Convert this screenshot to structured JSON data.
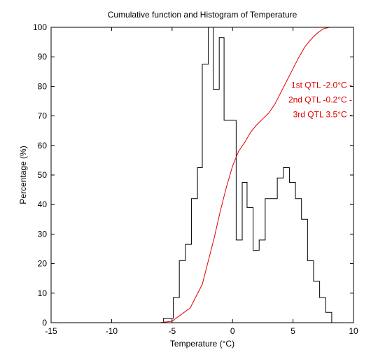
{
  "chart_data": {
    "type": "line",
    "title": "Cumulative function and Histogram of Temperature",
    "xlabel": "Temperature (°C)",
    "ylabel": "Percentage (%)",
    "xlim": [
      -15,
      10
    ],
    "ylim": [
      0,
      100
    ],
    "xticks": [
      -15,
      -10,
      -5,
      0,
      5,
      10
    ],
    "yticks": [
      0,
      10,
      20,
      30,
      40,
      50,
      60,
      70,
      80,
      90,
      100
    ],
    "grid": false,
    "colors": {
      "histogram": "#000000",
      "cumulative": "#e00000",
      "axes": "#000000",
      "background": "#ffffff"
    },
    "series": [
      {
        "kind": "histogram-stairs",
        "points": [
          [
            -15,
            0
          ],
          [
            -5.7,
            0
          ],
          [
            -5.7,
            1.5
          ],
          [
            -4.9,
            1.5
          ],
          [
            -4.9,
            8.5
          ],
          [
            -4.4,
            8.5
          ],
          [
            -4.4,
            21
          ],
          [
            -3.9,
            21
          ],
          [
            -3.9,
            26.5
          ],
          [
            -3.4,
            26.5
          ],
          [
            -3.4,
            42
          ],
          [
            -2.9,
            42
          ],
          [
            -2.9,
            52.5
          ],
          [
            -2.5,
            52.5
          ],
          [
            -2.5,
            87.5
          ],
          [
            -2.0,
            87.5
          ],
          [
            -2.0,
            100
          ],
          [
            -1.6,
            100
          ],
          [
            -1.6,
            79
          ],
          [
            -1.1,
            79
          ],
          [
            -1.1,
            96.5
          ],
          [
            -0.7,
            96.5
          ],
          [
            -0.7,
            68.5
          ],
          [
            0.3,
            68.5
          ],
          [
            0.3,
            28
          ],
          [
            0.8,
            28
          ],
          [
            0.8,
            47.5
          ],
          [
            1.2,
            47.5
          ],
          [
            1.2,
            39
          ],
          [
            1.7,
            39
          ],
          [
            1.7,
            24.5
          ],
          [
            2.2,
            24.5
          ],
          [
            2.2,
            28
          ],
          [
            2.7,
            28
          ],
          [
            2.7,
            42
          ],
          [
            3.7,
            42
          ],
          [
            3.7,
            49
          ],
          [
            4.2,
            49
          ],
          [
            4.2,
            52.5
          ],
          [
            4.7,
            52.5
          ],
          [
            4.7,
            47.5
          ],
          [
            5.2,
            47.5
          ],
          [
            5.2,
            42
          ],
          [
            5.7,
            42
          ],
          [
            5.7,
            35
          ],
          [
            6.2,
            35
          ],
          [
            6.2,
            21
          ],
          [
            6.7,
            21
          ],
          [
            6.7,
            14
          ],
          [
            7.2,
            14
          ],
          [
            7.2,
            8.5
          ],
          [
            7.7,
            8.5
          ],
          [
            7.7,
            3.5
          ],
          [
            8.2,
            3.5
          ],
          [
            8.2,
            0
          ],
          [
            10,
            0
          ]
        ]
      },
      {
        "kind": "cumulative",
        "points": [
          [
            -15,
            0
          ],
          [
            -6,
            0
          ],
          [
            -5,
            0.5
          ],
          [
            -4.5,
            2
          ],
          [
            -3.5,
            5
          ],
          [
            -2.5,
            13
          ],
          [
            -2,
            21
          ],
          [
            -1.5,
            29
          ],
          [
            -1,
            38
          ],
          [
            -0.5,
            46
          ],
          [
            0,
            53
          ],
          [
            0.5,
            58
          ],
          [
            1,
            61
          ],
          [
            1.5,
            64.5
          ],
          [
            2,
            67
          ],
          [
            2.5,
            69
          ],
          [
            3,
            71
          ],
          [
            3.5,
            74
          ],
          [
            4,
            78
          ],
          [
            4.5,
            82
          ],
          [
            5,
            86
          ],
          [
            5.5,
            90
          ],
          [
            6,
            93.5
          ],
          [
            6.5,
            96
          ],
          [
            7,
            98
          ],
          [
            7.5,
            99.5
          ],
          [
            8,
            100
          ],
          [
            10,
            100
          ]
        ]
      }
    ],
    "annotations": [
      {
        "label": "1st QTL",
        "value": "-2.0°C",
        "y": 80.5
      },
      {
        "label": "2nd QTL",
        "value": "-0.2°C",
        "y": 75.5
      },
      {
        "label": "3rd QTL",
        "value": "3.5°C",
        "y": 70.5
      }
    ]
  }
}
